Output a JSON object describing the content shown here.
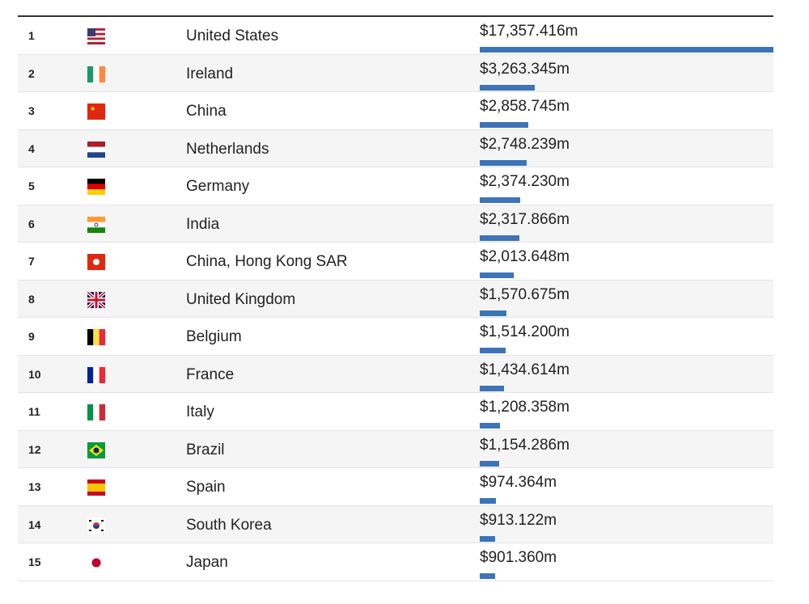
{
  "colors": {
    "bar": "#3d74b8",
    "row_alt": "#f5f5f5"
  },
  "chart_data": {
    "type": "table",
    "columns": [
      "rank",
      "flag",
      "country",
      "value"
    ],
    "rows": [
      {
        "rank": "1",
        "flag": "us-flag-icon",
        "country": "United States",
        "label": "$17,357.416m",
        "value": 17357.416
      },
      {
        "rank": "2",
        "flag": "ireland-flag-icon",
        "country": "Ireland",
        "label": "$3,263.345m",
        "value": 3263.345
      },
      {
        "rank": "3",
        "flag": "china-flag-icon",
        "country": "China",
        "label": "$2,858.745m",
        "value": 2858.745
      },
      {
        "rank": "4",
        "flag": "netherlands-flag-icon",
        "country": "Netherlands",
        "label": "$2,748.239m",
        "value": 2748.239
      },
      {
        "rank": "5",
        "flag": "germany-flag-icon",
        "country": "Germany",
        "label": "$2,374.230m",
        "value": 2374.23
      },
      {
        "rank": "6",
        "flag": "india-flag-icon",
        "country": "India",
        "label": "$2,317.866m",
        "value": 2317.866
      },
      {
        "rank": "7",
        "flag": "hong-kong-flag-icon",
        "country": "China, Hong Kong SAR",
        "label": "$2,013.648m",
        "value": 2013.648
      },
      {
        "rank": "8",
        "flag": "uk-flag-icon",
        "country": "United Kingdom",
        "label": "$1,570.675m",
        "value": 1570.675
      },
      {
        "rank": "9",
        "flag": "belgium-flag-icon",
        "country": "Belgium",
        "label": "$1,514.200m",
        "value": 1514.2
      },
      {
        "rank": "10",
        "flag": "france-flag-icon",
        "country": "France",
        "label": "$1,434.614m",
        "value": 1434.614
      },
      {
        "rank": "11",
        "flag": "italy-flag-icon",
        "country": "Italy",
        "label": "$1,208.358m",
        "value": 1208.358
      },
      {
        "rank": "12",
        "flag": "brazil-flag-icon",
        "country": "Brazil",
        "label": "$1,154.286m",
        "value": 1154.286
      },
      {
        "rank": "13",
        "flag": "spain-flag-icon",
        "country": "Spain",
        "label": "$974.364m",
        "value": 974.364
      },
      {
        "rank": "14",
        "flag": "south-korea-flag-icon",
        "country": "South Korea",
        "label": "$913.122m",
        "value": 913.122
      },
      {
        "rank": "15",
        "flag": "japan-flag-icon",
        "country": "Japan",
        "label": "$901.360m",
        "value": 901.36
      }
    ]
  }
}
